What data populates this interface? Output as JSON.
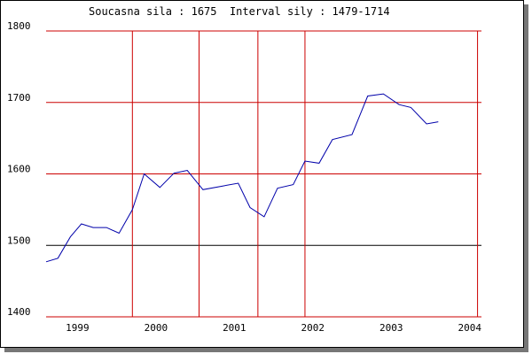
{
  "chart_data": {
    "type": "line",
    "title": "Soucasna sila : 1675  Interval sily : 1479-1714",
    "title_parts": {
      "current_label": "Soucasna sila :",
      "current_value": "1675",
      "interval_label": "Interval sily :",
      "interval_value": "1479-1714"
    },
    "xlabel": "",
    "ylabel": "",
    "ylim": [
      1400,
      1800
    ],
    "xlim": [
      1998.45,
      2004.0
    ],
    "yticks": [
      1400,
      1500,
      1600,
      1700,
      1800
    ],
    "xticks": [
      {
        "label": "1999",
        "pos": 1998.85
      },
      {
        "label": "2000",
        "pos": 1999.85
      },
      {
        "label": "2001",
        "pos": 2000.85
      },
      {
        "label": "2002",
        "pos": 2001.85
      },
      {
        "label": "2003",
        "pos": 2002.85
      },
      {
        "label": "2004",
        "pos": 2003.85
      }
    ],
    "vertical_gridlines": [
      1999.55,
      2000.4,
      2001.15,
      2001.75,
      2003.95
    ],
    "reference_line": 1500,
    "grid_color": "#cc0000",
    "line_color": "#0000aa",
    "series": [
      {
        "x": [
          1998.45,
          1998.6,
          1998.76,
          1998.9,
          1999.05,
          1999.22,
          1999.38,
          1999.55,
          1999.7,
          1999.9,
          2000.08,
          2000.25,
          2000.45,
          2000.7,
          2000.9,
          2001.05,
          2001.23,
          2001.4,
          2001.6,
          2001.75,
          2001.93,
          2002.1,
          2002.35,
          2002.55,
          2002.75,
          2002.95,
          2003.1,
          2003.3,
          2003.45
        ],
        "y": [
          1477,
          1482,
          1512,
          1530,
          1525,
          1525,
          1517,
          1550,
          1600,
          1581,
          1601,
          1605,
          1578,
          1583,
          1587,
          1553,
          1540,
          1580,
          1585,
          1618,
          1615,
          1648,
          1655,
          1709,
          1712,
          1697,
          1693,
          1670,
          1673
        ]
      }
    ]
  }
}
